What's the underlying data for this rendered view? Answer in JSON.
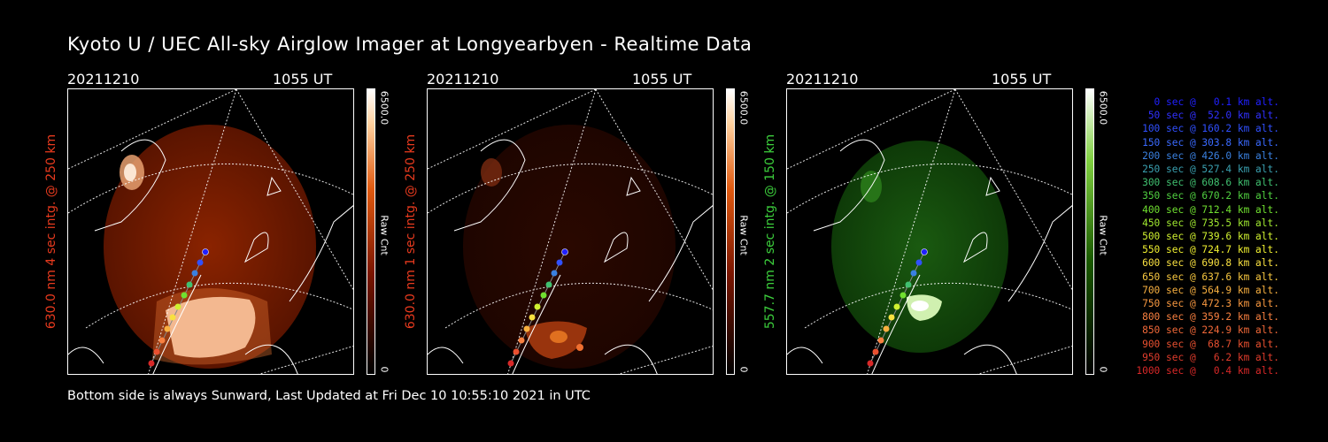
{
  "title": "Kyoto U / UEC All-sky Airglow Imager at Longyearbyen - Realtime Data",
  "footer": "Bottom side is always Sunward, Last Updated at Fri Dec 10 10:55:10 2021 in UTC",
  "panels": [
    {
      "date": "20211210",
      "time": "1055 UT",
      "side_label": "630.0 nm 4 sec intg. @ 250 km",
      "label_color": "#e83a1e",
      "colorbar_max": "6500.0",
      "colorbar_unit": "Raw Cnt",
      "colorbar_zero": "0",
      "scale": "red"
    },
    {
      "date": "20211210",
      "time": "1055 UT",
      "side_label": "630.0 nm 1 sec intg. @ 250 km",
      "label_color": "#e83a1e",
      "colorbar_max": "6500.0",
      "colorbar_unit": "Raw Cnt",
      "colorbar_zero": "0",
      "scale": "red"
    },
    {
      "date": "20211210",
      "time": "1055 UT",
      "side_label": "557.7 nm 2 sec intg. @ 150 km",
      "label_color": "#3ccf3c",
      "colorbar_max": "6500.0",
      "colorbar_unit": "Raw Cnt",
      "colorbar_zero": "0",
      "scale": "green"
    }
  ],
  "legend": [
    {
      "text": "0 sec @   0.1 km alt.",
      "color": "#2020ff"
    },
    {
      "text": "50 sec @  52.0 km alt.",
      "color": "#3030ff"
    },
    {
      "text": "100 sec @ 160.2 km alt.",
      "color": "#3050ff"
    },
    {
      "text": "150 sec @ 303.8 km alt.",
      "color": "#3a6aff"
    },
    {
      "text": "200 sec @ 426.0 km alt.",
      "color": "#3a80e0"
    },
    {
      "text": "250 sec @ 527.4 km alt.",
      "color": "#3aa0b0"
    },
    {
      "text": "300 sec @ 608.6 km alt.",
      "color": "#40c070"
    },
    {
      "text": "350 sec @ 670.2 km alt.",
      "color": "#50d040"
    },
    {
      "text": "400 sec @ 712.4 km alt.",
      "color": "#70e030"
    },
    {
      "text": "450 sec @ 735.5 km alt.",
      "color": "#a0e830"
    },
    {
      "text": "500 sec @ 739.6 km alt.",
      "color": "#d0f030"
    },
    {
      "text": "550 sec @ 724.7 km alt.",
      "color": "#f0f030"
    },
    {
      "text": "600 sec @ 690.8 km alt.",
      "color": "#f8e040"
    },
    {
      "text": "650 sec @ 637.6 km alt.",
      "color": "#f8c840"
    },
    {
      "text": "700 sec @ 564.9 km alt.",
      "color": "#f8b040"
    },
    {
      "text": "750 sec @ 472.3 km alt.",
      "color": "#f89840"
    },
    {
      "text": "800 sec @ 359.2 km alt.",
      "color": "#f88040"
    },
    {
      "text": "850 sec @ 224.9 km alt.",
      "color": "#f06838"
    },
    {
      "text": "900 sec @  68.7 km alt.",
      "color": "#e85030"
    },
    {
      "text": "950 sec @   6.2 km alt.",
      "color": "#e03c2c"
    },
    {
      "text": "1000 sec @   0.4 km alt.",
      "color": "#d82828"
    }
  ]
}
